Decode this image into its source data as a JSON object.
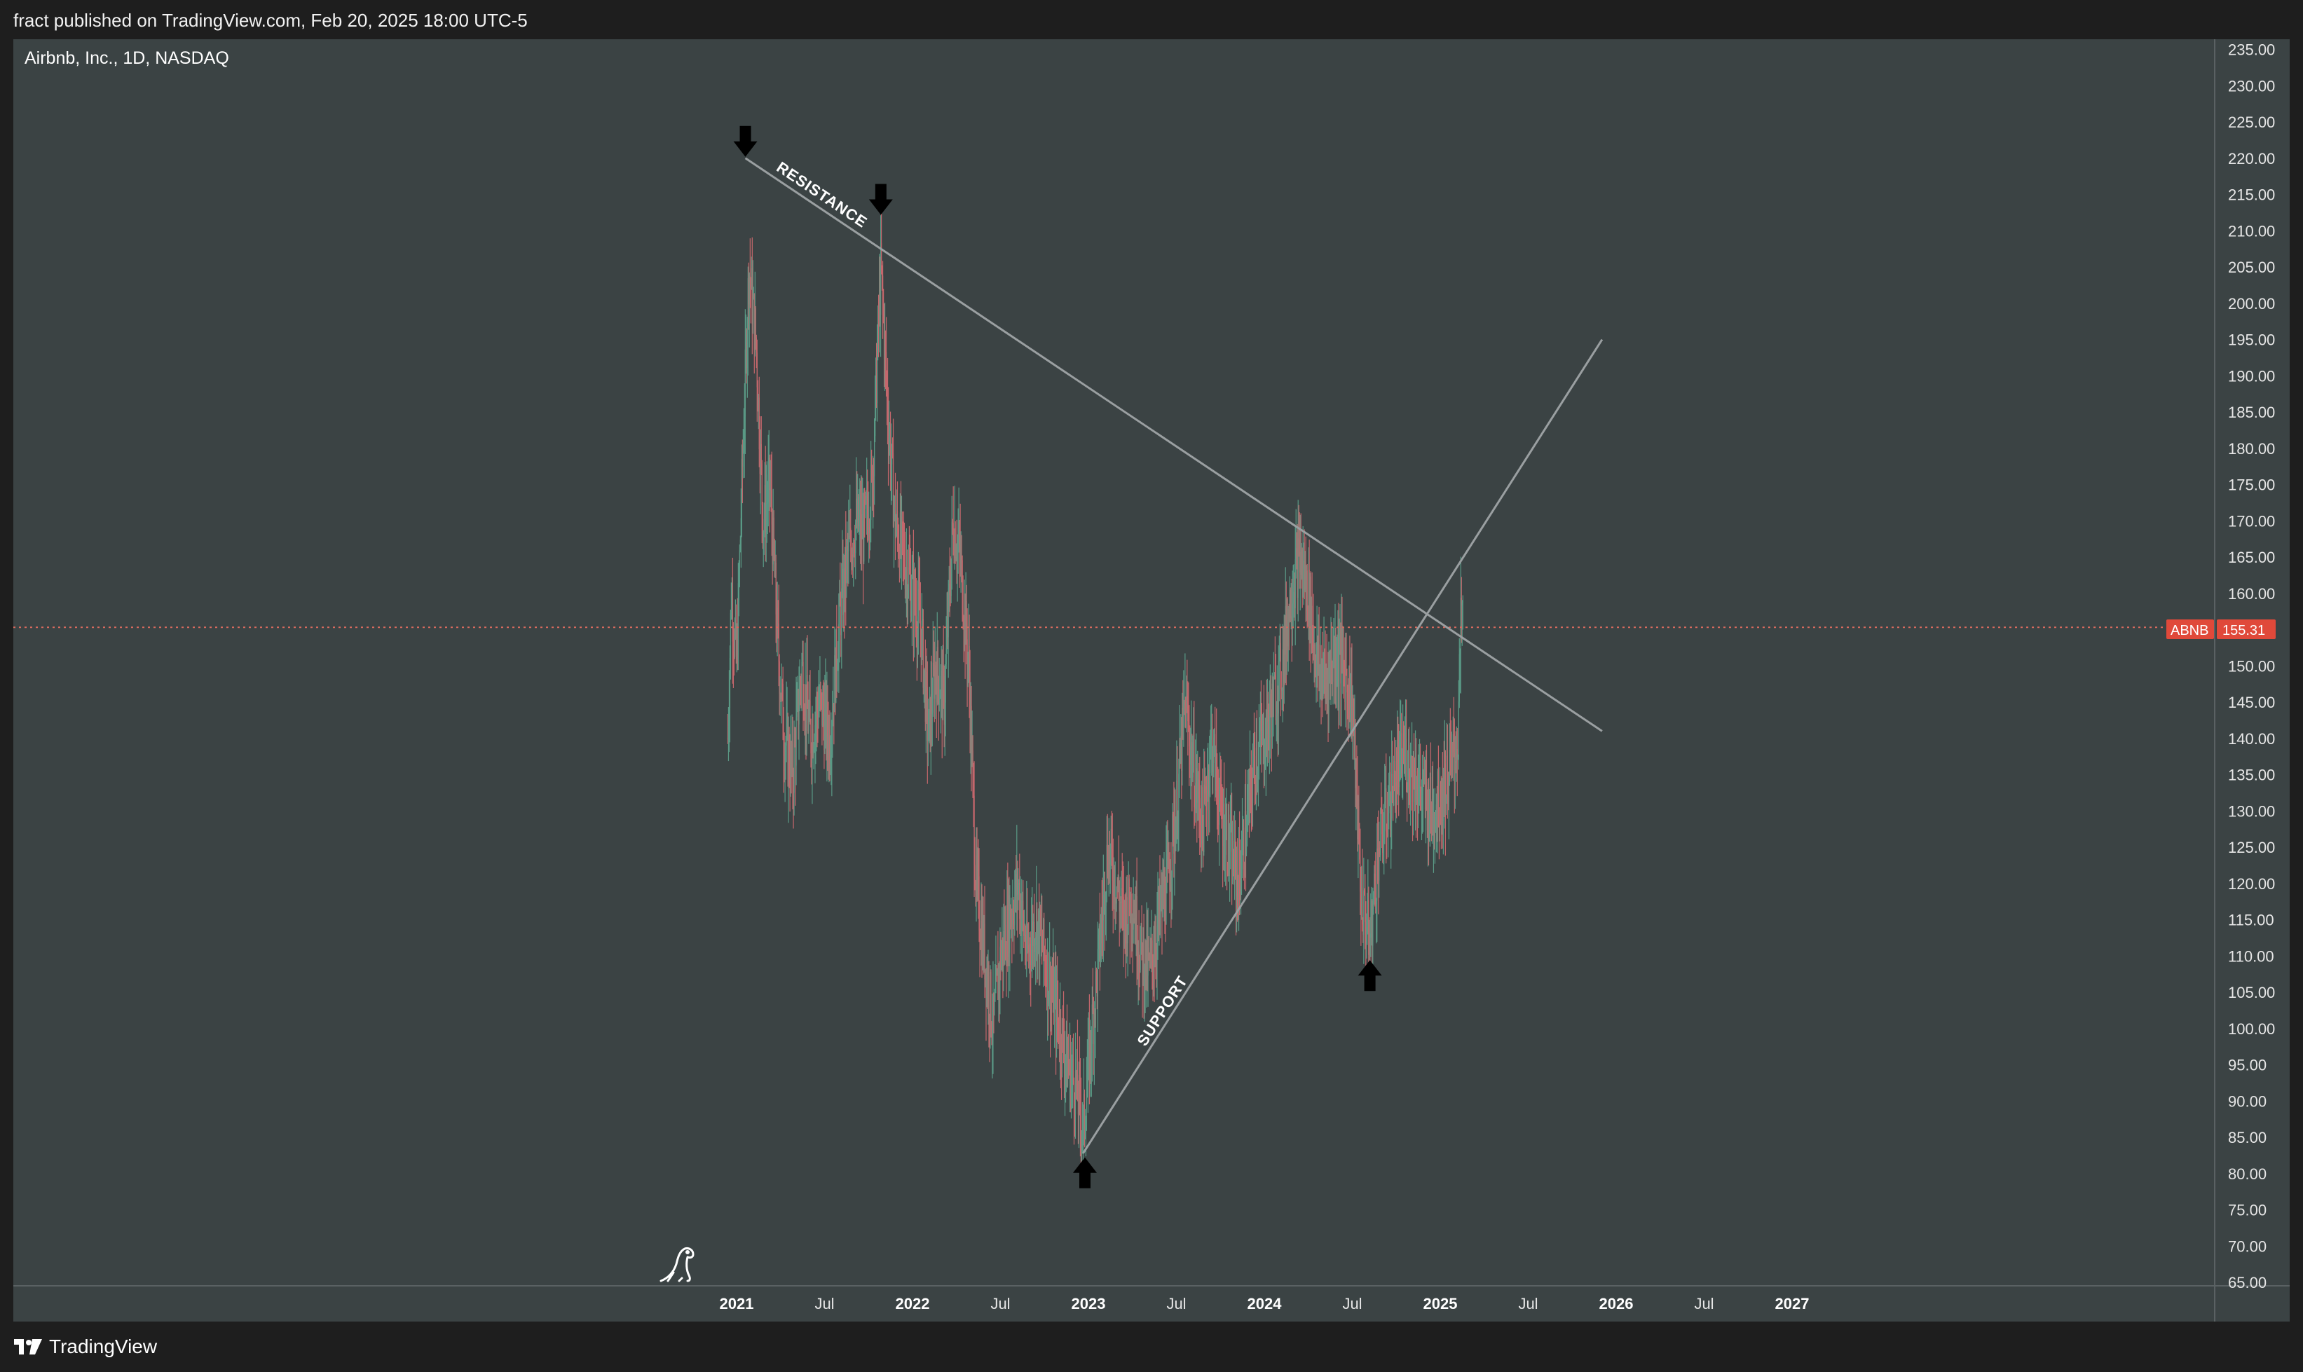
{
  "header": {
    "published": "fract published on TradingView.com, Feb 20, 2025 18:00 UTC-5"
  },
  "symbol": {
    "title": "Airbnb, Inc., 1D, NASDAQ"
  },
  "price_tag": {
    "ticker": "ABNB",
    "value": "155.31",
    "color": "#e0493a"
  },
  "footer": {
    "brand": "TradingView"
  },
  "colors": {
    "background": "#3b4344",
    "up": "#5a9a86",
    "down": "#c5676c",
    "trendline": "#9a9fa1"
  },
  "chart_data": {
    "type": "candlestick",
    "title": "Airbnb, Inc., 1D, NASDAQ",
    "ylim": [
      65,
      236
    ],
    "y_ticks": [
      "65.00",
      "70.00",
      "75.00",
      "80.00",
      "85.00",
      "90.00",
      "95.00",
      "100.00",
      "105.00",
      "110.00",
      "115.00",
      "120.00",
      "125.00",
      "130.00",
      "135.00",
      "140.00",
      "145.00",
      "150.00",
      "155.00",
      "160.00",
      "165.00",
      "170.00",
      "175.00",
      "180.00",
      "185.00",
      "190.00",
      "195.00",
      "200.00",
      "205.00",
      "210.00",
      "215.00",
      "220.00",
      "225.00",
      "230.00",
      "235.00"
    ],
    "x_ticks": [
      {
        "label": "2021",
        "t": 2021.0,
        "bold": true
      },
      {
        "label": "Jul",
        "t": 2021.5,
        "bold": false
      },
      {
        "label": "2022",
        "t": 2022.0,
        "bold": true
      },
      {
        "label": "Jul",
        "t": 2022.5,
        "bold": false
      },
      {
        "label": "2023",
        "t": 2023.0,
        "bold": true
      },
      {
        "label": "Jul",
        "t": 2023.5,
        "bold": false
      },
      {
        "label": "2024",
        "t": 2024.0,
        "bold": true
      },
      {
        "label": "Jul",
        "t": 2024.5,
        "bold": false
      },
      {
        "label": "2025",
        "t": 2025.0,
        "bold": true
      },
      {
        "label": "Jul",
        "t": 2025.5,
        "bold": false
      },
      {
        "label": "2026",
        "t": 2026.0,
        "bold": true
      },
      {
        "label": "Jul",
        "t": 2026.5,
        "bold": false
      },
      {
        "label": "2027",
        "t": 2027.0,
        "bold": true
      }
    ],
    "last_price": 155.31,
    "price_path": [
      [
        2020.95,
        140
      ],
      [
        2020.97,
        160
      ],
      [
        2021.0,
        150
      ],
      [
        2021.03,
        175
      ],
      [
        2021.07,
        205
      ],
      [
        2021.11,
        195
      ],
      [
        2021.15,
        170
      ],
      [
        2021.19,
        175
      ],
      [
        2021.23,
        155
      ],
      [
        2021.27,
        140
      ],
      [
        2021.32,
        135
      ],
      [
        2021.37,
        150
      ],
      [
        2021.42,
        140
      ],
      [
        2021.47,
        145
      ],
      [
        2021.53,
        140
      ],
      [
        2021.58,
        155
      ],
      [
        2021.63,
        165
      ],
      [
        2021.68,
        170
      ],
      [
        2021.72,
        168
      ],
      [
        2021.77,
        175
      ],
      [
        2021.82,
        205
      ],
      [
        2021.86,
        185
      ],
      [
        2021.9,
        170
      ],
      [
        2021.95,
        165
      ],
      [
        2022.0,
        160
      ],
      [
        2022.05,
        155
      ],
      [
        2022.09,
        140
      ],
      [
        2022.13,
        150
      ],
      [
        2022.18,
        145
      ],
      [
        2022.23,
        170
      ],
      [
        2022.27,
        165
      ],
      [
        2022.32,
        150
      ],
      [
        2022.36,
        120
      ],
      [
        2022.41,
        110
      ],
      [
        2022.46,
        100
      ],
      [
        2022.5,
        110
      ],
      [
        2022.55,
        115
      ],
      [
        2022.6,
        120
      ],
      [
        2022.65,
        110
      ],
      [
        2022.7,
        115
      ],
      [
        2022.75,
        110
      ],
      [
        2022.79,
        105
      ],
      [
        2022.84,
        100
      ],
      [
        2022.88,
        95
      ],
      [
        2022.93,
        92
      ],
      [
        2022.97,
        86
      ],
      [
        2023.02,
        100
      ],
      [
        2023.06,
        110
      ],
      [
        2023.11,
        125
      ],
      [
        2023.16,
        120
      ],
      [
        2023.2,
        115
      ],
      [
        2023.25,
        118
      ],
      [
        2023.3,
        110
      ],
      [
        2023.35,
        108
      ],
      [
        2023.4,
        115
      ],
      [
        2023.45,
        120
      ],
      [
        2023.5,
        130
      ],
      [
        2023.55,
        145
      ],
      [
        2023.6,
        135
      ],
      [
        2023.65,
        128
      ],
      [
        2023.7,
        140
      ],
      [
        2023.75,
        130
      ],
      [
        2023.8,
        125
      ],
      [
        2023.85,
        120
      ],
      [
        2023.9,
        128
      ],
      [
        2023.95,
        138
      ],
      [
        2024.0,
        140
      ],
      [
        2024.05,
        145
      ],
      [
        2024.1,
        150
      ],
      [
        2024.15,
        160
      ],
      [
        2024.2,
        165
      ],
      [
        2024.25,
        160
      ],
      [
        2024.3,
        150
      ],
      [
        2024.35,
        148
      ],
      [
        2024.4,
        152
      ],
      [
        2024.45,
        150
      ],
      [
        2024.5,
        145
      ],
      [
        2024.55,
        118
      ],
      [
        2024.6,
        112
      ],
      [
        2024.65,
        125
      ],
      [
        2024.7,
        130
      ],
      [
        2024.75,
        135
      ],
      [
        2024.8,
        138
      ],
      [
        2024.85,
        135
      ],
      [
        2024.9,
        132
      ],
      [
        2024.95,
        130
      ],
      [
        2025.0,
        132
      ],
      [
        2025.05,
        135
      ],
      [
        2025.1,
        140
      ],
      [
        2025.12,
        158
      ],
      [
        2025.13,
        155.31
      ]
    ],
    "trendlines": [
      {
        "label": "RESISTANCE",
        "from": [
          2021.05,
          220
        ],
        "to": [
          2025.92,
          141
        ]
      },
      {
        "label": "SUPPORT",
        "from": [
          2022.97,
          82.8
        ],
        "to": [
          2025.92,
          195
        ]
      }
    ],
    "markers": [
      {
        "direction": "down",
        "t": 2021.05,
        "price": 220
      },
      {
        "direction": "down",
        "t": 2021.82,
        "price": 212
      },
      {
        "direction": "up",
        "t": 2022.98,
        "price": 82.8
      },
      {
        "direction": "up",
        "t": 2024.6,
        "price": 110
      }
    ]
  }
}
